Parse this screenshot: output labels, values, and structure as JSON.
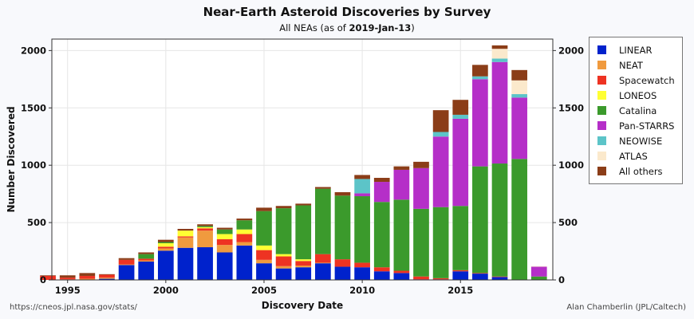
{
  "header": {
    "title": "Near-Earth Asteroid Discoveries by Survey",
    "subtitle_prefix": "All NEAs (as of ",
    "subtitle_date": "2019-Jan-13",
    "subtitle_suffix": ")"
  },
  "footer": {
    "source_url": "https://cneos.jpl.nasa.gov/stats/",
    "credit": "Alan Chamberlin (JPL/Caltech)"
  },
  "chart_data": {
    "type": "bar",
    "stacked": true,
    "xlabel": "Discovery Date",
    "ylabel": "Number Discovered",
    "xlim": [
      1994.2,
      2019.7
    ],
    "ylim": [
      0,
      2100
    ],
    "x_ticks": [
      1995,
      2000,
      2005,
      2010,
      2015
    ],
    "y_ticks": [
      0,
      500,
      1000,
      1500,
      2000
    ],
    "grid": true,
    "right_axis_mirror": true,
    "legend_position": "right",
    "categories": [
      1994,
      1995,
      1996,
      1997,
      1998,
      1999,
      2000,
      2001,
      2002,
      2003,
      2004,
      2005,
      2006,
      2007,
      2008,
      2009,
      2010,
      2011,
      2012,
      2013,
      2014,
      2015,
      2016,
      2017,
      2018,
      2019
    ],
    "series": [
      {
        "name": "LINEAR",
        "color": "#0022cc",
        "values": [
          0,
          0,
          0,
          10,
          130,
          160,
          255,
          280,
          285,
          240,
          300,
          145,
          100,
          110,
          145,
          115,
          110,
          75,
          60,
          5,
          5,
          75,
          55,
          25,
          0,
          0
        ]
      },
      {
        "name": "NEAT",
        "color": "#f09a3e",
        "values": [
          0,
          5,
          10,
          10,
          5,
          10,
          20,
          90,
          145,
          65,
          30,
          30,
          20,
          15,
          5,
          0,
          0,
          0,
          0,
          0,
          0,
          0,
          0,
          0,
          0,
          0
        ]
      },
      {
        "name": "Spacewatch",
        "color": "#ee3322",
        "values": [
          35,
          15,
          25,
          25,
          40,
          15,
          15,
          10,
          20,
          50,
          70,
          85,
          85,
          40,
          75,
          65,
          40,
          35,
          20,
          25,
          10,
          10,
          5,
          5,
          0,
          0
        ]
      },
      {
        "name": "LONEOS",
        "color": "#ffff33",
        "values": [
          0,
          0,
          0,
          0,
          0,
          0,
          30,
          50,
          10,
          45,
          40,
          40,
          20,
          15,
          0,
          0,
          0,
          0,
          0,
          0,
          0,
          0,
          0,
          0,
          0,
          0
        ]
      },
      {
        "name": "Catalina",
        "color": "#3b9a2c",
        "values": [
          0,
          0,
          0,
          0,
          0,
          40,
          10,
          0,
          10,
          40,
          80,
          300,
          400,
          470,
          570,
          555,
          580,
          570,
          620,
          590,
          620,
          560,
          930,
          985,
          1055,
          30
        ]
      },
      {
        "name": "Pan-STARRS",
        "color": "#b52fc8",
        "values": [
          0,
          0,
          0,
          0,
          0,
          0,
          0,
          0,
          0,
          0,
          0,
          0,
          0,
          0,
          0,
          0,
          25,
          175,
          260,
          355,
          615,
          760,
          760,
          885,
          535,
          85
        ]
      },
      {
        "name": "NEOWISE",
        "color": "#5cc4c8",
        "values": [
          0,
          0,
          0,
          0,
          0,
          0,
          0,
          0,
          0,
          0,
          0,
          0,
          0,
          0,
          0,
          0,
          125,
          0,
          0,
          0,
          40,
          35,
          25,
          30,
          30,
          0
        ]
      },
      {
        "name": "ATLAS",
        "color": "#fbe9cc",
        "values": [
          0,
          0,
          0,
          0,
          0,
          0,
          0,
          0,
          0,
          0,
          0,
          0,
          0,
          0,
          0,
          0,
          0,
          0,
          0,
          0,
          0,
          0,
          0,
          85,
          120,
          5
        ]
      },
      {
        "name": "All others",
        "color": "#8b3d18",
        "values": [
          5,
          20,
          25,
          5,
          15,
          15,
          20,
          15,
          15,
          15,
          15,
          30,
          20,
          15,
          15,
          30,
          35,
          35,
          30,
          55,
          190,
          130,
          100,
          30,
          90,
          0
        ]
      }
    ]
  }
}
